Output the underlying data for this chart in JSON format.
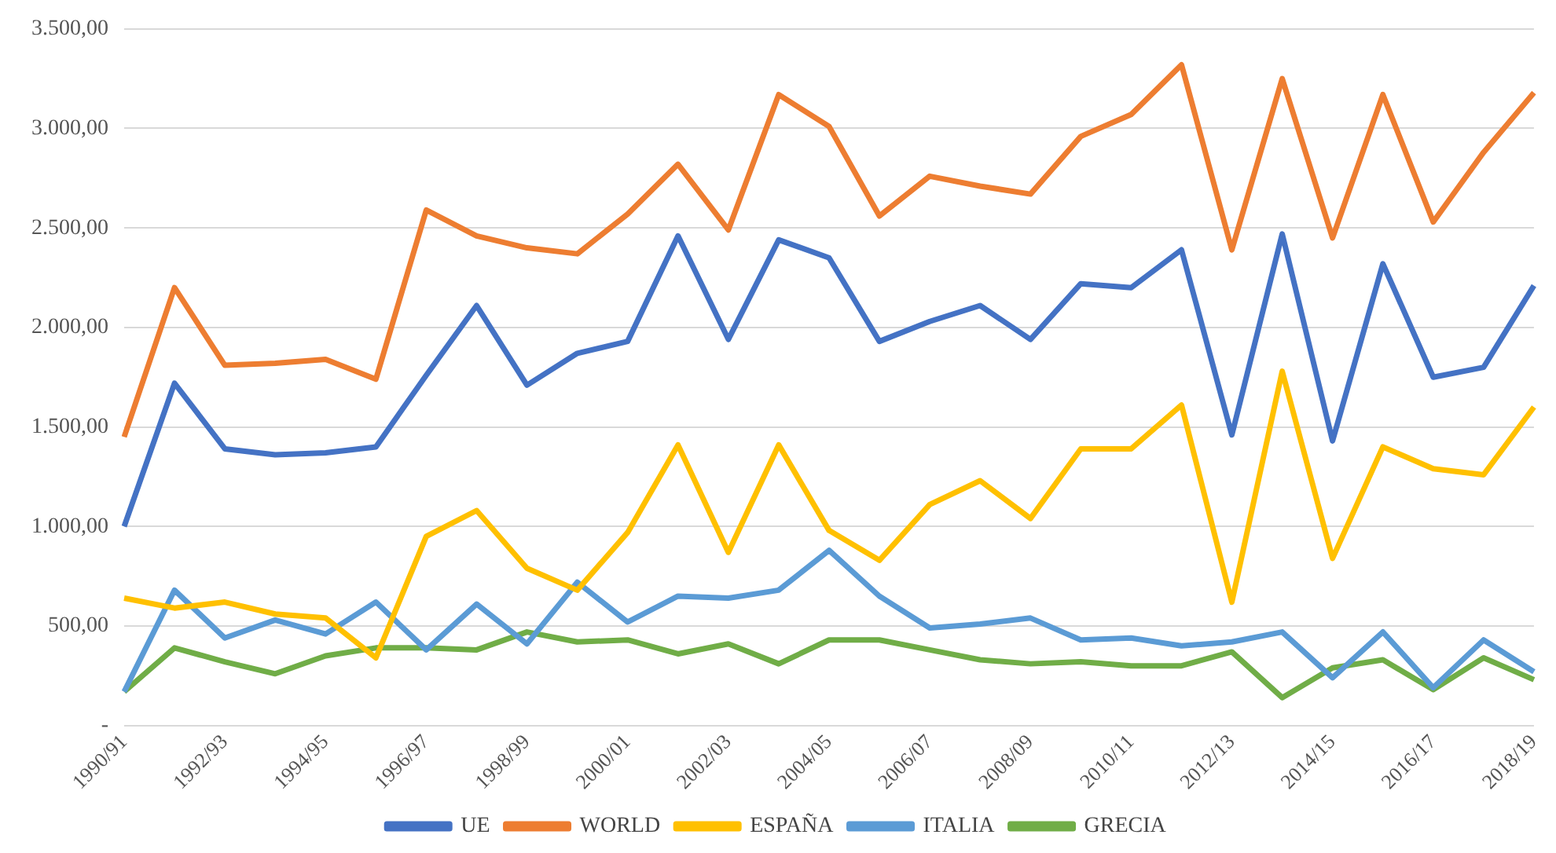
{
  "chart_data": {
    "type": "line",
    "categories": [
      "1990/91",
      null,
      "1992/93",
      null,
      "1994/95",
      null,
      "1996/97",
      null,
      "1998/99",
      null,
      "2000/01",
      null,
      "2002/03",
      null,
      "2004/05",
      null,
      "2006/07",
      null,
      "2008/09",
      null,
      "2010/11",
      null,
      "2012/13",
      null,
      "2014/15",
      null,
      "2016/17",
      null,
      "2018/19"
    ],
    "series": [
      {
        "name": "UE",
        "color": "#4472c4",
        "values": [
          1000,
          1720,
          1390,
          1360,
          1370,
          1400,
          1760,
          2110,
          1710,
          1870,
          1930,
          2460,
          1940,
          2440,
          2350,
          1930,
          2030,
          2110,
          1940,
          2220,
          2200,
          2390,
          1460,
          2470,
          1430,
          2320,
          1750,
          1800,
          2210
        ]
      },
      {
        "name": "WORLD",
        "color": "#ed7d31",
        "values": [
          1450,
          2200,
          1810,
          1820,
          1840,
          1740,
          2590,
          2460,
          2400,
          2370,
          2570,
          2820,
          2490,
          3170,
          3010,
          2560,
          2760,
          2710,
          2670,
          2960,
          3070,
          3320,
          2390,
          3250,
          2450,
          3170,
          2530,
          2880,
          3180
        ]
      },
      {
        "name": "ESPAÑA",
        "color": "#ffc000",
        "values": [
          640,
          590,
          620,
          560,
          540,
          340,
          950,
          1080,
          790,
          680,
          970,
          1410,
          870,
          1410,
          980,
          830,
          1110,
          1230,
          1040,
          1390,
          1390,
          1610,
          620,
          1780,
          840,
          1400,
          1290,
          1260,
          1600
        ]
      },
      {
        "name": "ITALIA",
        "color": "#5b9bd5",
        "values": [
          170,
          680,
          440,
          530,
          460,
          620,
          380,
          610,
          410,
          720,
          520,
          650,
          640,
          680,
          880,
          650,
          490,
          510,
          540,
          430,
          440,
          400,
          420,
          470,
          240,
          470,
          190,
          430,
          270
        ]
      },
      {
        "name": "GRECIA",
        "color": "#70ad47",
        "values": [
          170,
          390,
          320,
          260,
          350,
          390,
          390,
          380,
          470,
          420,
          430,
          360,
          410,
          310,
          430,
          430,
          380,
          330,
          310,
          320,
          300,
          300,
          370,
          140,
          290,
          330,
          180,
          340,
          230
        ]
      }
    ],
    "ylim": [
      0,
      3500
    ],
    "yticks": [
      {
        "value": 0,
        "label": "-"
      },
      {
        "value": 500,
        "label": "500,00"
      },
      {
        "value": 1000,
        "label": "1.000,00"
      },
      {
        "value": 1500,
        "label": "1.500,00"
      },
      {
        "value": 2000,
        "label": "2.000,00"
      },
      {
        "value": 2500,
        "label": "2.500,00"
      },
      {
        "value": 3000,
        "label": "3.000,00"
      },
      {
        "value": 3500,
        "label": "3.500,00"
      }
    ],
    "grid": "y",
    "legend": "bottom",
    "marker": "none",
    "line_style": "solid"
  }
}
